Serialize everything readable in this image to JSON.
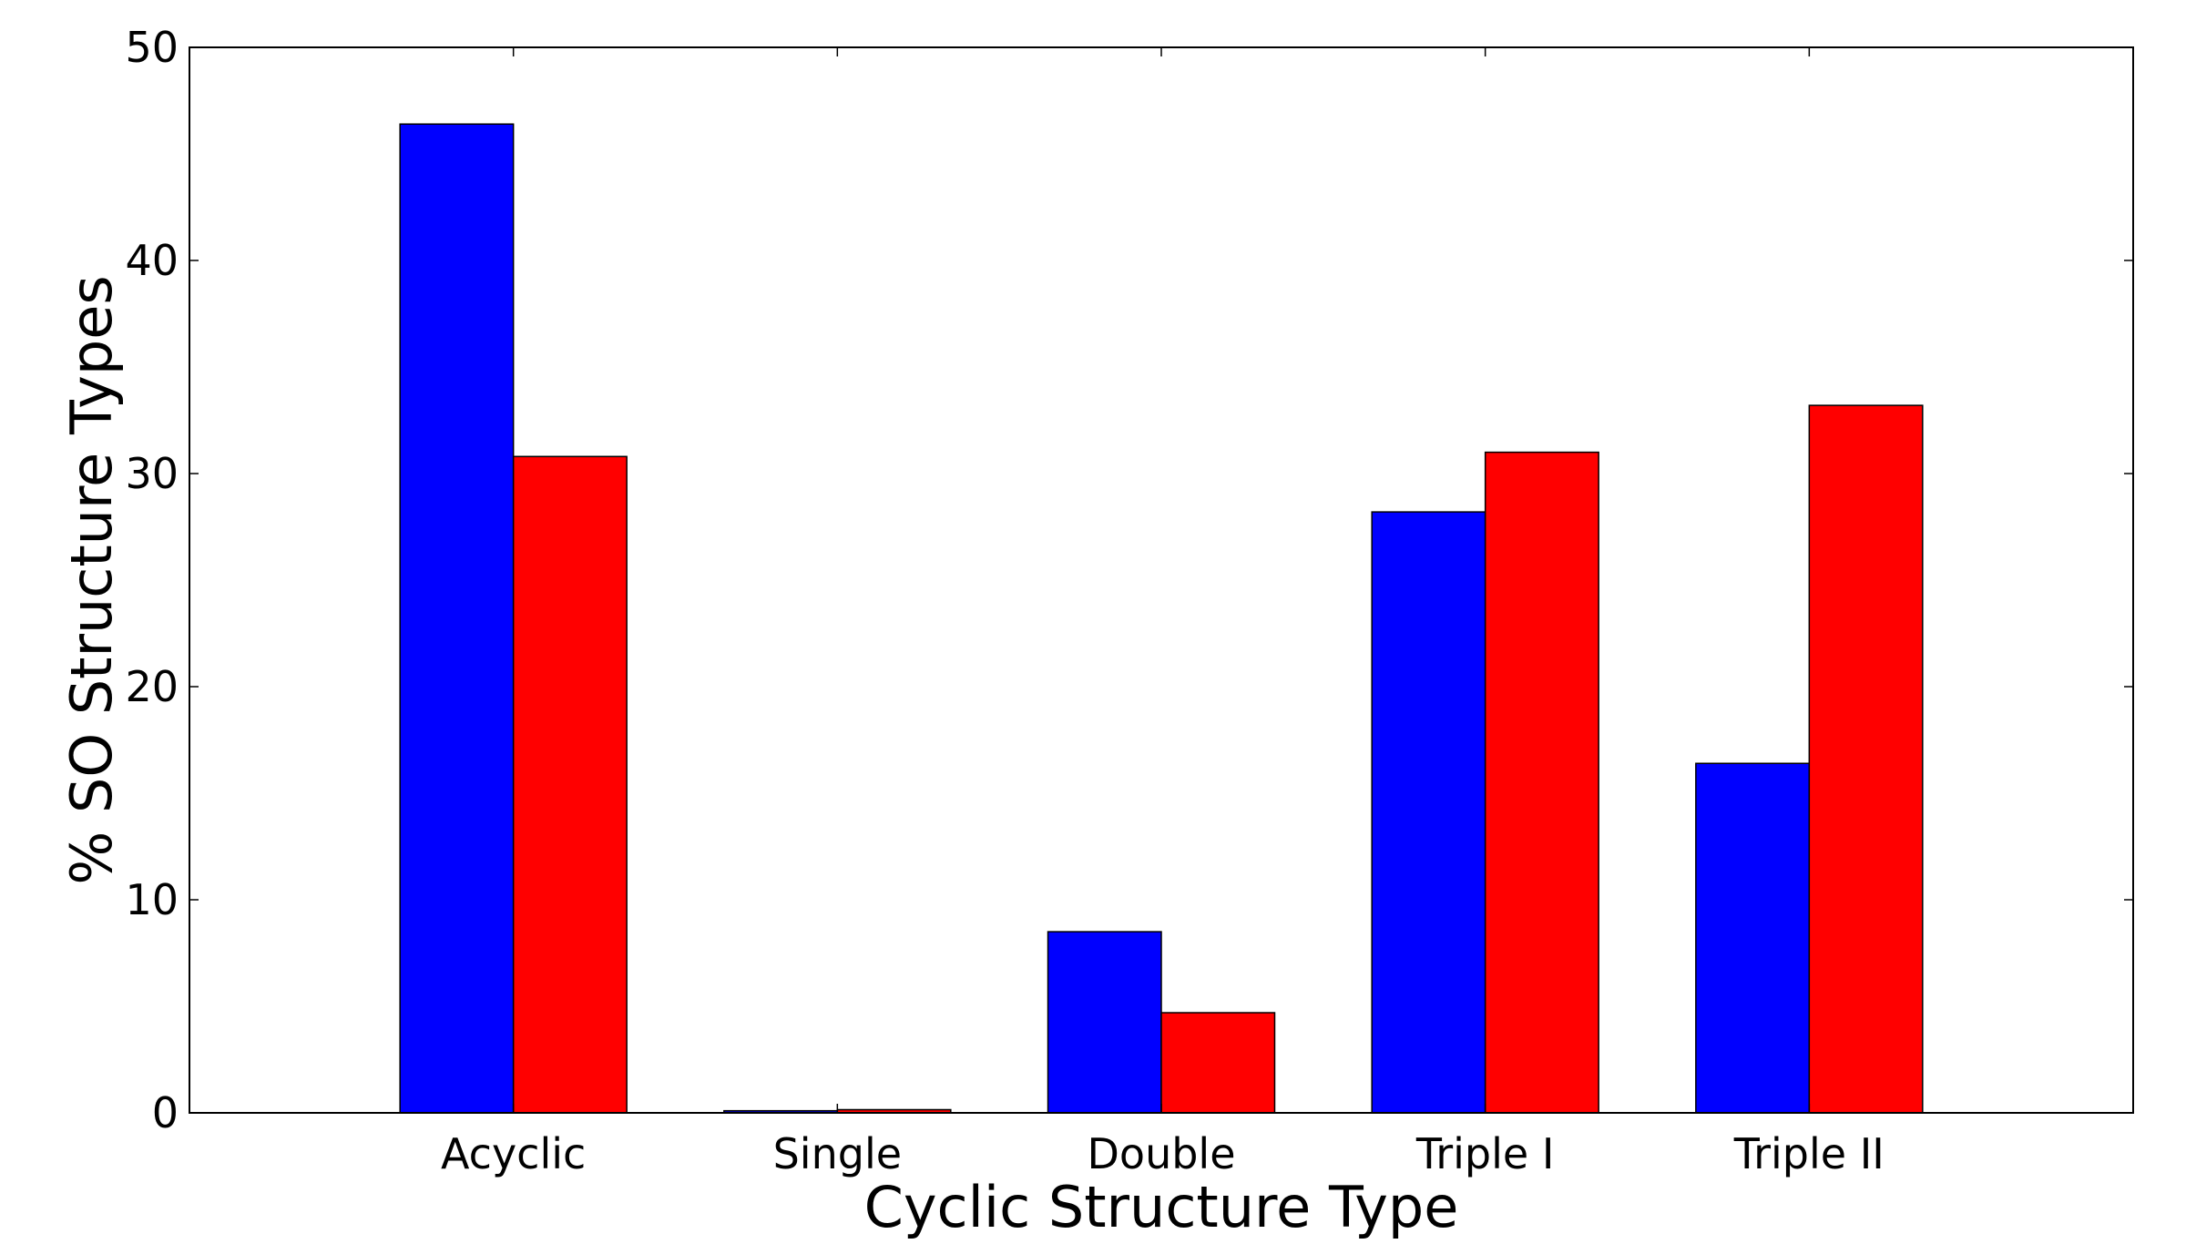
{
  "chart_data": {
    "type": "bar",
    "categories": [
      "Acyclic",
      "Single",
      "Double",
      "Triple I",
      "Triple II"
    ],
    "series": [
      {
        "color": "#0000ff",
        "values": [
          46.4,
          0.1,
          8.5,
          28.2,
          16.4
        ]
      },
      {
        "color": "#ff0000",
        "values": [
          30.8,
          0.15,
          4.7,
          31.0,
          33.2
        ]
      }
    ],
    "xlabel": "Cyclic Structure Type",
    "ylabel": "% SO Structure Types",
    "ylim": [
      0,
      50
    ],
    "yticks": [
      "0",
      "10",
      "20",
      "30",
      "40",
      "50"
    ],
    "grid": false,
    "legend": "none"
  }
}
